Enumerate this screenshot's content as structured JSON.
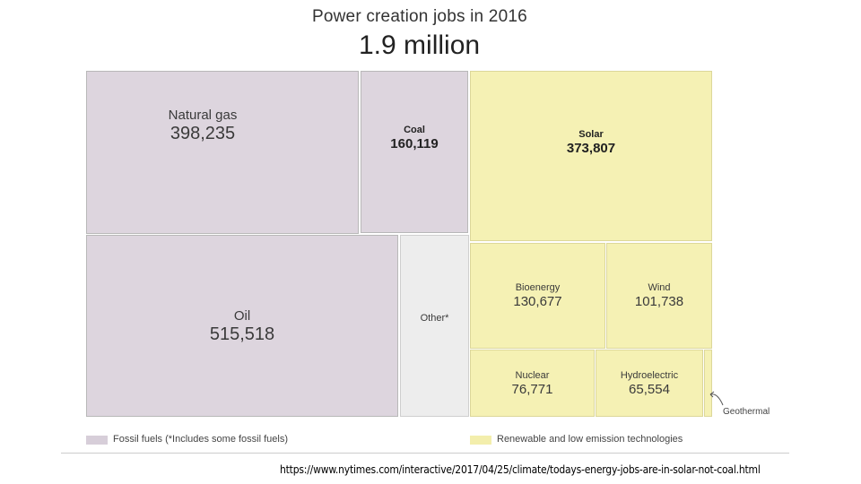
{
  "chart_data": {
    "type": "treemap",
    "title": "Power creation jobs in 2016",
    "total_label": "1.9 million",
    "cells": [
      {
        "id": "natural-gas",
        "name": "Natural gas",
        "value": "398,235",
        "group": "fossil",
        "emphasis": false
      },
      {
        "id": "coal",
        "name": "Coal",
        "value": "160,119",
        "group": "fossil",
        "emphasis": true
      },
      {
        "id": "oil",
        "name": "Oil",
        "value": "515,518",
        "group": "fossil",
        "emphasis": false
      },
      {
        "id": "other",
        "name": "Other*",
        "value": "",
        "group": "other",
        "emphasis": false
      },
      {
        "id": "solar",
        "name": "Solar",
        "value": "373,807",
        "group": "renewable",
        "emphasis": true
      },
      {
        "id": "bioenergy",
        "name": "Bioenergy",
        "value": "130,677",
        "group": "renewable",
        "emphasis": false
      },
      {
        "id": "wind",
        "name": "Wind",
        "value": "101,738",
        "group": "renewable",
        "emphasis": false
      },
      {
        "id": "nuclear",
        "name": "Nuclear",
        "value": "76,771",
        "group": "renewable",
        "emphasis": false
      },
      {
        "id": "hydroelectric",
        "name": "Hydroelectric",
        "value": "65,554",
        "group": "renewable",
        "emphasis": false
      },
      {
        "id": "geothermal",
        "name": "Geothermal",
        "value": "",
        "group": "renewable",
        "emphasis": false
      }
    ],
    "legend": [
      {
        "label": "Fossil fuels (*Includes some fossil fuels)",
        "color": "#d7ced9"
      },
      {
        "label": "Renewable and low emission technologies",
        "color": "#f3eeac"
      }
    ]
  },
  "source_url": "https://www.nytimes.com/interactive/2017/04/25/climate/todays-energy-jobs-are-in-solar-not-coal.html"
}
